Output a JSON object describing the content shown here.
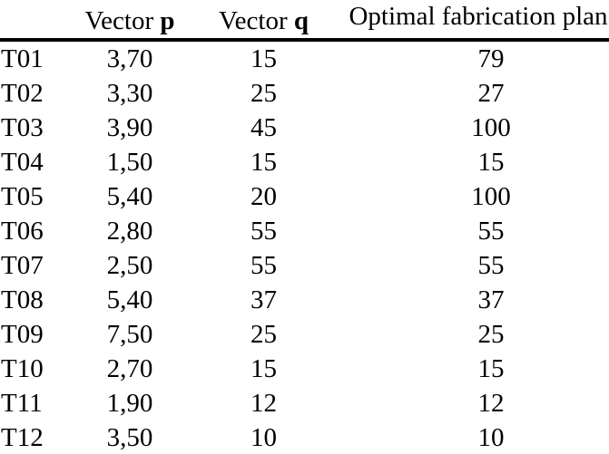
{
  "table": {
    "header": {
      "col1": "",
      "p_prefix": "Vector ",
      "p_bold": "p",
      "q_prefix": "Vector ",
      "q_bold": "q",
      "plan": "Optimal fabrication plan"
    },
    "rows": [
      {
        "id": "T01",
        "p": "3,70",
        "q": "15",
        "plan": "79"
      },
      {
        "id": "T02",
        "p": "3,30",
        "q": "25",
        "plan": "27"
      },
      {
        "id": "T03",
        "p": "3,90",
        "q": "45",
        "plan": "100"
      },
      {
        "id": "T04",
        "p": "1,50",
        "q": "15",
        "plan": "15"
      },
      {
        "id": "T05",
        "p": "5,40",
        "q": "20",
        "plan": "100"
      },
      {
        "id": "T06",
        "p": "2,80",
        "q": "55",
        "plan": "55"
      },
      {
        "id": "T07",
        "p": "2,50",
        "q": "55",
        "plan": "55"
      },
      {
        "id": "T08",
        "p": "5,40",
        "q": "37",
        "plan": "37"
      },
      {
        "id": "T09",
        "p": "7,50",
        "q": "25",
        "plan": "25"
      },
      {
        "id": "T10",
        "p": "2,70",
        "q": "15",
        "plan": "15"
      },
      {
        "id": "T11",
        "p": "1,90",
        "q": "12",
        "plan": "12"
      },
      {
        "id": "T12",
        "p": "3,50",
        "q": "10",
        "plan": "10"
      }
    ]
  }
}
